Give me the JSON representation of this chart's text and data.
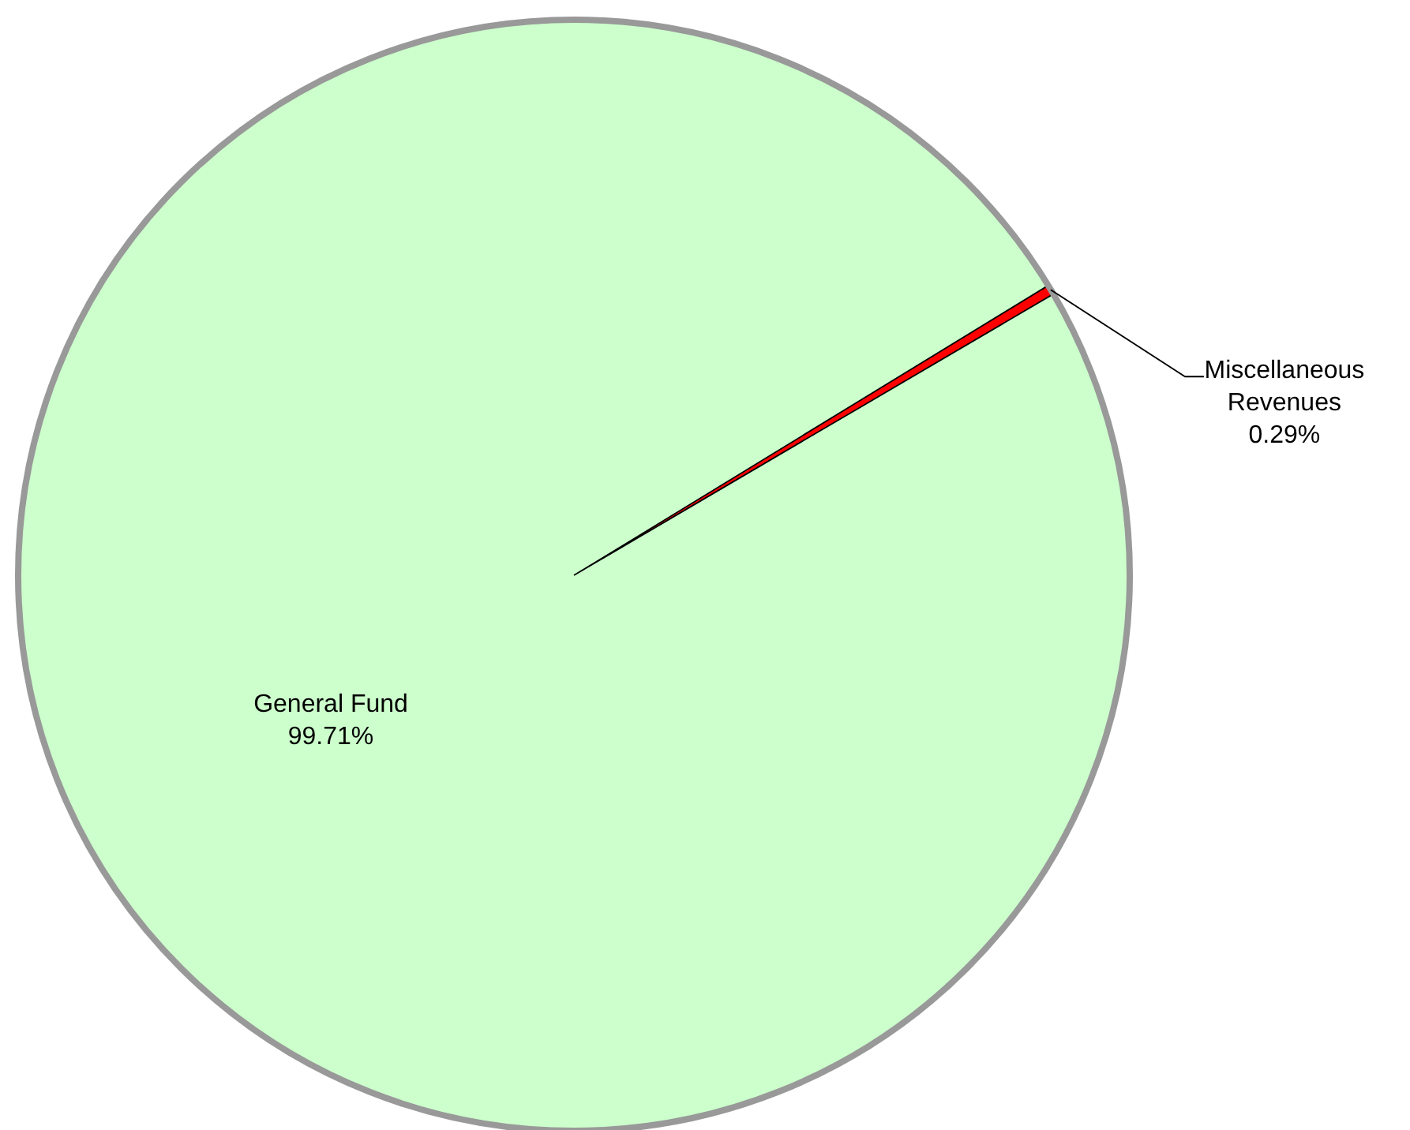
{
  "chart_data": {
    "type": "pie",
    "categories": [
      "General Fund",
      "Miscellaneous Revenues"
    ],
    "values": [
      99.71,
      0.29
    ],
    "colors": [
      "#ccffcc",
      "#ff0000"
    ],
    "value_labels": [
      "99.71%",
      "0.29%"
    ]
  }
}
